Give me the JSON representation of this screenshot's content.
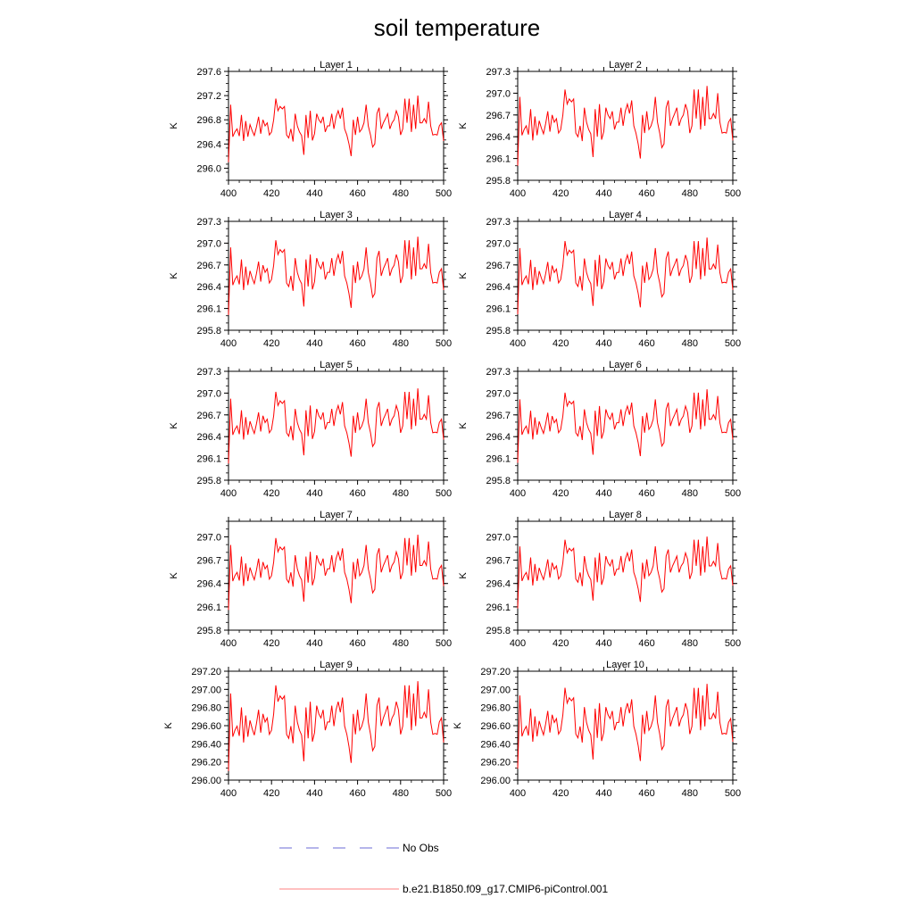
{
  "chart_data": {
    "type": "line",
    "title": "soil temperature",
    "xlabel": "",
    "ylabel": "K",
    "xlim": [
      400,
      500
    ],
    "xticks": [
      400,
      420,
      440,
      460,
      480,
      500
    ],
    "legend": {
      "position": "bottom",
      "entries": [
        {
          "name": "No Obs",
          "style": "dashed",
          "color": "#6b6bd6"
        },
        {
          "name": "b.e21.B1850.f09_g17.CMIP6-piControl.001",
          "style": "solid",
          "color": "#ff0000"
        }
      ]
    },
    "x": [
      400,
      401,
      402,
      403,
      404,
      405,
      406,
      407,
      408,
      409,
      410,
      411,
      412,
      413,
      414,
      415,
      416,
      417,
      418,
      419,
      420,
      421,
      422,
      423,
      424,
      425,
      426,
      427,
      428,
      429,
      430,
      431,
      432,
      433,
      434,
      435,
      436,
      437,
      438,
      439,
      440,
      441,
      442,
      443,
      444,
      445,
      446,
      447,
      448,
      449,
      450,
      451,
      452,
      453,
      454,
      455,
      456,
      457,
      458,
      459,
      460,
      461,
      462,
      463,
      464,
      465,
      466,
      467,
      468,
      469,
      470,
      471,
      472,
      473,
      474,
      475,
      476,
      477,
      478,
      479,
      480,
      481,
      482,
      483,
      484,
      485,
      486,
      487,
      488,
      489,
      490,
      491,
      492,
      493,
      494,
      495,
      496,
      497,
      498,
      499,
      500
    ],
    "base_series": [
      -0.5,
      0.45,
      -0.08,
      0.0,
      0.05,
      -0.07,
      0.28,
      -0.15,
      0.18,
      -0.08,
      0.12,
      0.02,
      -0.06,
      0.08,
      0.25,
      -0.03,
      0.2,
      0.1,
      0.15,
      -0.05,
      0.0,
      0.2,
      0.55,
      0.35,
      0.42,
      0.38,
      0.42,
      -0.05,
      -0.1,
      0.05,
      -0.16,
      0.3,
      0.1,
      0.0,
      -0.06,
      -0.38,
      0.28,
      -0.1,
      0.35,
      -0.14,
      -0.03,
      0.3,
      0.2,
      0.15,
      0.25,
      0.0,
      0.1,
      0.1,
      0.3,
      0.05,
      0.25,
      0.35,
      0.22,
      0.4,
      0.05,
      -0.05,
      -0.2,
      -0.4,
      0.2,
      -0.05,
      0.25,
      0.0,
      0.05,
      0.15,
      0.45,
      0.1,
      -0.05,
      -0.25,
      -0.2,
      0.3,
      0.4,
      0.05,
      0.15,
      0.22,
      0.3,
      0.05,
      0.15,
      0.2,
      0.35,
      0.25,
      -0.05,
      0.05,
      0.55,
      0.15,
      0.55,
      0.0,
      0.45,
      0.05,
      0.6,
      0.15,
      0.15,
      0.22,
      0.15,
      0.5,
      0.1,
      -0.05,
      -0.04,
      -0.05,
      0.1,
      0.15,
      -0.15
    ],
    "layers": [
      {
        "name": "Layer 1",
        "mean": 296.6,
        "scale": 1.0,
        "ylim": [
          295.8,
          297.6
        ],
        "yticks": [
          "297.6",
          "297.2",
          "296.8",
          "296.4",
          "296.0"
        ]
      },
      {
        "name": "Layer 2",
        "mean": 296.5,
        "scale": 1.0,
        "ylim": [
          295.8,
          297.3
        ],
        "yticks": [
          "297.3",
          "297.0",
          "296.7",
          "296.4",
          "296.1",
          "295.8"
        ]
      },
      {
        "name": "Layer 3",
        "mean": 296.5,
        "scale": 0.98,
        "ylim": [
          295.8,
          297.3
        ],
        "yticks": [
          "297.3",
          "297.0",
          "296.7",
          "296.4",
          "296.1",
          "295.8"
        ]
      },
      {
        "name": "Layer 4",
        "mean": 296.5,
        "scale": 0.96,
        "ylim": [
          295.8,
          297.3
        ],
        "yticks": [
          "297.3",
          "297.0",
          "296.7",
          "296.4",
          "296.1",
          "295.8"
        ]
      },
      {
        "name": "Layer 5",
        "mean": 296.5,
        "scale": 0.94,
        "ylim": [
          295.8,
          297.3
        ],
        "yticks": [
          "297.3",
          "297.0",
          "296.7",
          "296.4",
          "296.1",
          "295.8"
        ]
      },
      {
        "name": "Layer 6",
        "mean": 296.5,
        "scale": 0.92,
        "ylim": [
          295.8,
          297.3
        ],
        "yticks": [
          "297.3",
          "297.0",
          "296.7",
          "296.4",
          "296.1",
          "295.8"
        ]
      },
      {
        "name": "Layer 7",
        "mean": 296.5,
        "scale": 0.88,
        "ylim": [
          295.8,
          297.2
        ],
        "yticks": [
          "297.0",
          "296.7",
          "296.4",
          "296.1",
          "295.8"
        ]
      },
      {
        "name": "Layer 8",
        "mean": 296.5,
        "scale": 0.84,
        "ylim": [
          295.8,
          297.2
        ],
        "yticks": [
          "297.0",
          "296.7",
          "296.4",
          "296.1",
          "295.8"
        ]
      },
      {
        "name": "Layer 9",
        "mean": 296.55,
        "scale": 0.9,
        "ylim": [
          296.0,
          297.2
        ],
        "yticks": [
          "297.20",
          "297.00",
          "296.80",
          "296.60",
          "296.40",
          "296.20",
          "296.00"
        ]
      },
      {
        "name": "Layer 10",
        "mean": 296.55,
        "scale": 0.85,
        "ylim": [
          296.0,
          297.2
        ],
        "yticks": [
          "297.20",
          "297.00",
          "296.80",
          "296.60",
          "296.40",
          "296.20",
          "296.00"
        ]
      }
    ]
  }
}
